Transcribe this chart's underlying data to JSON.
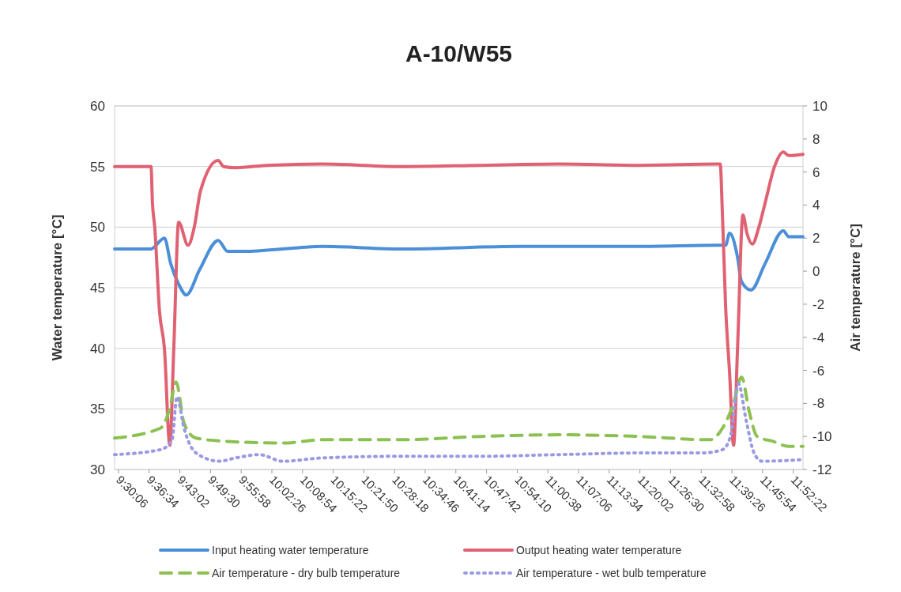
{
  "chart_data": {
    "type": "line",
    "title": "A-10/W55",
    "ylabel": "Water temperature [°C]",
    "y2label": "Air temperature [°C]",
    "xlim": [
      9.488,
      11.907
    ],
    "xticks": [
      {
        "value": 9.5017,
        "label": "9:30:06"
      },
      {
        "value": 9.6094,
        "label": "9:36:34"
      },
      {
        "value": 9.7172,
        "label": "9:43:02"
      },
      {
        "value": 9.825,
        "label": "9:49:30"
      },
      {
        "value": 9.9328,
        "label": "9:55:58"
      },
      {
        "value": 10.0406,
        "label": "10:02:26"
      },
      {
        "value": 10.1483,
        "label": "10:08:54"
      },
      {
        "value": 10.2561,
        "label": "10:15:22"
      },
      {
        "value": 10.3639,
        "label": "10:21:50"
      },
      {
        "value": 10.4717,
        "label": "10:28:18"
      },
      {
        "value": 10.5794,
        "label": "10:34:46"
      },
      {
        "value": 10.6872,
        "label": "10:41:14"
      },
      {
        "value": 10.795,
        "label": "10:47:42"
      },
      {
        "value": 10.9028,
        "label": "10:54:10"
      },
      {
        "value": 11.0106,
        "label": "11:00:38"
      },
      {
        "value": 11.1183,
        "label": "11:07:06"
      },
      {
        "value": 11.2261,
        "label": "11:13:34"
      },
      {
        "value": 11.3339,
        "label": "11:20:02"
      },
      {
        "value": 11.4417,
        "label": "11:26:30"
      },
      {
        "value": 11.5494,
        "label": "11:32:58"
      },
      {
        "value": 11.6572,
        "label": "11:39:26"
      },
      {
        "value": 11.765,
        "label": "11:45:54"
      },
      {
        "value": 11.8728,
        "label": "11:52:22"
      }
    ],
    "ylim": [
      30,
      60
    ],
    "yticks": [
      30,
      35,
      40,
      45,
      50,
      55,
      60
    ],
    "y2lim": [
      -12,
      10
    ],
    "y2ticks": [
      -12,
      -10,
      -8,
      -6,
      -4,
      -2,
      0,
      2,
      4,
      6,
      8,
      10
    ],
    "grid": "y",
    "legend": "bottom",
    "series": [
      {
        "name": "Input heating water temperature",
        "color": "#4a8fd8",
        "line_style": "solid",
        "x": [
          9.488,
          9.616,
          9.663,
          9.685,
          9.713,
          9.74,
          9.787,
          9.852,
          9.885,
          9.941,
          10.135,
          10.218,
          10.496,
          10.913,
          11.33,
          11.607,
          11.635,
          11.649,
          11.677,
          11.691,
          11.724,
          11.774,
          11.838,
          11.857,
          11.907
        ],
        "values": [
          48.2,
          48.2,
          49.1,
          47,
          45.3,
          44.4,
          46.5,
          48.9,
          48,
          48,
          48.3,
          48.4,
          48.2,
          48.4,
          48.4,
          48.5,
          48.5,
          49.5,
          47.5,
          45.5,
          44.8,
          47,
          49.7,
          49.2,
          49.2
        ]
      },
      {
        "name": "Output heating water temperature",
        "color": "#e06272",
        "line_style": "solid",
        "x": [
          9.488,
          9.616,
          9.621,
          9.629,
          9.646,
          9.663,
          9.682,
          9.696,
          9.713,
          9.746,
          9.768,
          9.79,
          9.852,
          9.871,
          9.913,
          10.024,
          10.218,
          10.496,
          10.774,
          11.052,
          11.33,
          11.607,
          11.616,
          11.624,
          11.635,
          11.649,
          11.663,
          11.677,
          11.696,
          11.71,
          11.729,
          11.752,
          11.774,
          11.807,
          11.838,
          11.857,
          11.907
        ],
        "values": [
          55,
          55,
          52,
          50,
          43,
          40,
          32,
          40,
          50.4,
          48.5,
          50,
          53,
          55.5,
          55,
          54.9,
          55.1,
          55.2,
          55,
          55.1,
          55.2,
          55.1,
          55.2,
          55.2,
          51,
          43.5,
          38,
          32,
          40,
          51,
          49.5,
          48.6,
          50,
          52,
          55,
          56.2,
          55.9,
          56
        ]
      },
      {
        "name": "Air temperature - dry bulb temperature",
        "color": "#8cc152",
        "line_style": "dashed",
        "axis": "y2",
        "x": [
          9.488,
          9.649,
          9.682,
          9.704,
          9.732,
          9.774,
          9.885,
          10.079,
          10.218,
          10.496,
          10.774,
          11.052,
          11.33,
          11.58,
          11.624,
          11.663,
          11.691,
          11.718,
          11.746,
          11.802,
          11.857,
          11.907
        ],
        "values": [
          -10.1,
          -9.5,
          -8.3,
          -6.7,
          -9.2,
          -10.1,
          -10.3,
          -10.4,
          -10.2,
          -10.2,
          -10,
          -9.9,
          -10,
          -10.2,
          -9.5,
          -8,
          -6.4,
          -8.5,
          -10,
          -10.3,
          -10.6,
          -10.6
        ]
      },
      {
        "name": "Air temperature - wet bulb temperature",
        "color": "#9a9ae2",
        "line_style": "dotted",
        "axis": "y2",
        "x": [
          9.488,
          9.649,
          9.69,
          9.707,
          9.732,
          9.774,
          9.857,
          9.913,
          9.996,
          10.079,
          10.218,
          10.496,
          10.774,
          11.052,
          11.33,
          11.552,
          11.624,
          11.652,
          11.68,
          11.707,
          11.735,
          11.763,
          11.907
        ],
        "values": [
          -11.1,
          -10.8,
          -10.2,
          -7.6,
          -9.5,
          -11,
          -11.5,
          -11.3,
          -11.1,
          -11.5,
          -11.3,
          -11.2,
          -11.2,
          -11.1,
          -11,
          -11,
          -10.8,
          -10,
          -6.8,
          -9,
          -11,
          -11.5,
          -11.4
        ]
      }
    ]
  }
}
